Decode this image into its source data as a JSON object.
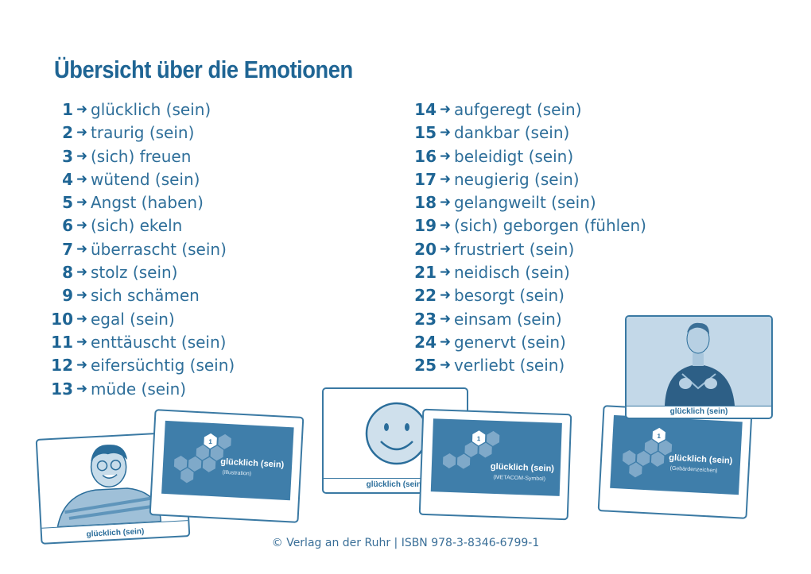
{
  "title": "Übersicht über die Emotionen",
  "left_items": [
    {
      "n": "1",
      "t": "glücklich (sein)"
    },
    {
      "n": "2",
      "t": "traurig (sein)"
    },
    {
      "n": "3",
      "t": "(sich) freuen"
    },
    {
      "n": "4",
      "t": "wütend (sein)"
    },
    {
      "n": "5",
      "t": "Angst (haben)"
    },
    {
      "n": "6",
      "t": "(sich) ekeln"
    },
    {
      "n": "7",
      "t": "überrascht (sein)"
    },
    {
      "n": "8",
      "t": "stolz (sein)"
    },
    {
      "n": "9",
      "t": "sich schämen"
    },
    {
      "n": "10",
      "t": "egal (sein)"
    },
    {
      "n": "11",
      "t": "enttäuscht (sein)"
    },
    {
      "n": "12",
      "t": "eifersüchtig (sein)"
    },
    {
      "n": "13",
      "t": "müde (sein)"
    }
  ],
  "right_items": [
    {
      "n": "14",
      "t": "aufgeregt (sein)"
    },
    {
      "n": "15",
      "t": "dankbar (sein)"
    },
    {
      "n": "16",
      "t": "beleidigt (sein)"
    },
    {
      "n": "17",
      "t": "neugierig (sein)"
    },
    {
      "n": "18",
      "t": "gelangweilt (sein)"
    },
    {
      "n": "19",
      "t": "(sich) geborgen (fühlen)"
    },
    {
      "n": "20",
      "t": "frustriert (sein)"
    },
    {
      "n": "21",
      "t": "neidisch (sein)"
    },
    {
      "n": "22",
      "t": "besorgt (sein)"
    },
    {
      "n": "23",
      "t": "einsam (sein)"
    },
    {
      "n": "24",
      "t": "genervt (sein)"
    },
    {
      "n": "25",
      "t": "verliebt (sein)"
    }
  ],
  "arrow": "➜",
  "cards": {
    "caption": "glücklich (sein)",
    "card_number": "1",
    "sub_illustration": "(Illustration)",
    "sub_metacom": "(METACOM-Symbol)",
    "sub_gebaerden": "(Gebärdenzeichen)"
  },
  "footer": "© Verlag an der Ruhr | ISBN 978-3-8346-6799-1"
}
